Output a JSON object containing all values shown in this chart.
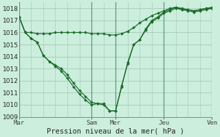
{
  "title": "Pression niveau de la mer( hPa )",
  "background_color": "#cceedd",
  "plot_bg_color": "#cceedd",
  "grid_color": "#aaccbb",
  "line_color": "#1a6b2a",
  "vline_color": "#5a9a7a",
  "ylim": [
    1009,
    1018.5
  ],
  "yticks": [
    1009,
    1010,
    1011,
    1012,
    1013,
    1014,
    1015,
    1016,
    1017,
    1018
  ],
  "day_labels": [
    "Mar",
    "Sam",
    "Mer",
    "Jeu",
    "Ven"
  ],
  "day_positions": [
    0,
    12,
    16,
    24,
    32
  ],
  "xlim": [
    0,
    32
  ],
  "series": [
    [
      1017.3,
      1016.0,
      1016.0,
      1015.9,
      1015.9,
      1015.9,
      1016.0,
      1016.0,
      1016.0,
      1016.0,
      1016.0,
      1016.0,
      1015.9,
      1015.9,
      1015.9,
      1015.8,
      1015.8,
      1015.9,
      1016.1,
      1016.4,
      1016.8,
      1017.1,
      1017.4,
      1017.6,
      1017.8,
      1018.0,
      1018.1,
      1017.9,
      1017.9,
      1017.8,
      1017.9,
      1018.0,
      1018.0
    ],
    [
      1017.3,
      1016.0,
      1015.5,
      1015.2,
      1014.1,
      1013.6,
      1013.3,
      1013.0,
      1012.5,
      1011.8,
      1011.2,
      1010.7,
      1010.2,
      1010.1,
      1010.0,
      1009.5,
      1009.5,
      1011.5,
      1013.5,
      1015.0,
      1015.4,
      1016.2,
      1016.9,
      1017.2,
      1017.6,
      1017.8,
      1018.0,
      1017.9,
      1017.8,
      1017.7,
      1017.8,
      1017.9,
      1018.0
    ],
    [
      1017.3,
      1016.0,
      1015.5,
      1015.2,
      1014.1,
      1013.6,
      1013.2,
      1012.8,
      1012.2,
      1011.5,
      1010.9,
      1010.4,
      1010.0,
      1010.1,
      1010.1,
      1009.5,
      1009.5,
      1011.6,
      1013.4,
      1015.0,
      1015.4,
      1016.3,
      1017.0,
      1017.3,
      1017.7,
      1017.9,
      1018.1,
      1018.0,
      1017.9,
      1017.8,
      1017.9,
      1018.0,
      1018.1
    ]
  ]
}
